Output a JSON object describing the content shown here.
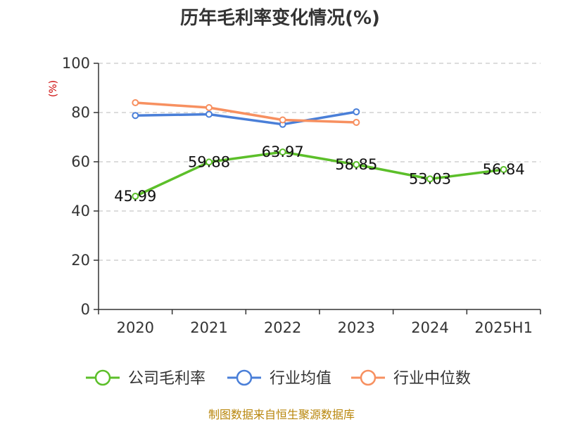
{
  "chart_data": {
    "type": "line",
    "title": "历年毛利率变化情况(%)",
    "ylabel": "(%)",
    "xlabel": "",
    "categories": [
      "2020",
      "2021",
      "2022",
      "2023",
      "2024",
      "2025H1"
    ],
    "ylim": [
      0,
      100
    ],
    "yticks": [
      "0",
      "20",
      "40",
      "60",
      "80",
      "100"
    ],
    "grid": true,
    "legend_position": "bottom",
    "series": [
      {
        "name": "公司毛利率",
        "color": "#5cbf2a",
        "values": [
          45.99,
          59.88,
          63.97,
          58.85,
          53.03,
          56.84
        ],
        "labels": [
          "45.99",
          "59.88",
          "63.97",
          "58.85",
          "53.03",
          "56.84"
        ]
      },
      {
        "name": "行业均值",
        "color": "#4a7fd8",
        "values": [
          78.8,
          79.3,
          75.2,
          80.3,
          null,
          null
        ]
      },
      {
        "name": "行业中位数",
        "color": "#f79060",
        "values": [
          84.0,
          82.0,
          77.0,
          76.0,
          null,
          null
        ]
      }
    ]
  },
  "source": "制图数据来自恒生聚源数据库"
}
